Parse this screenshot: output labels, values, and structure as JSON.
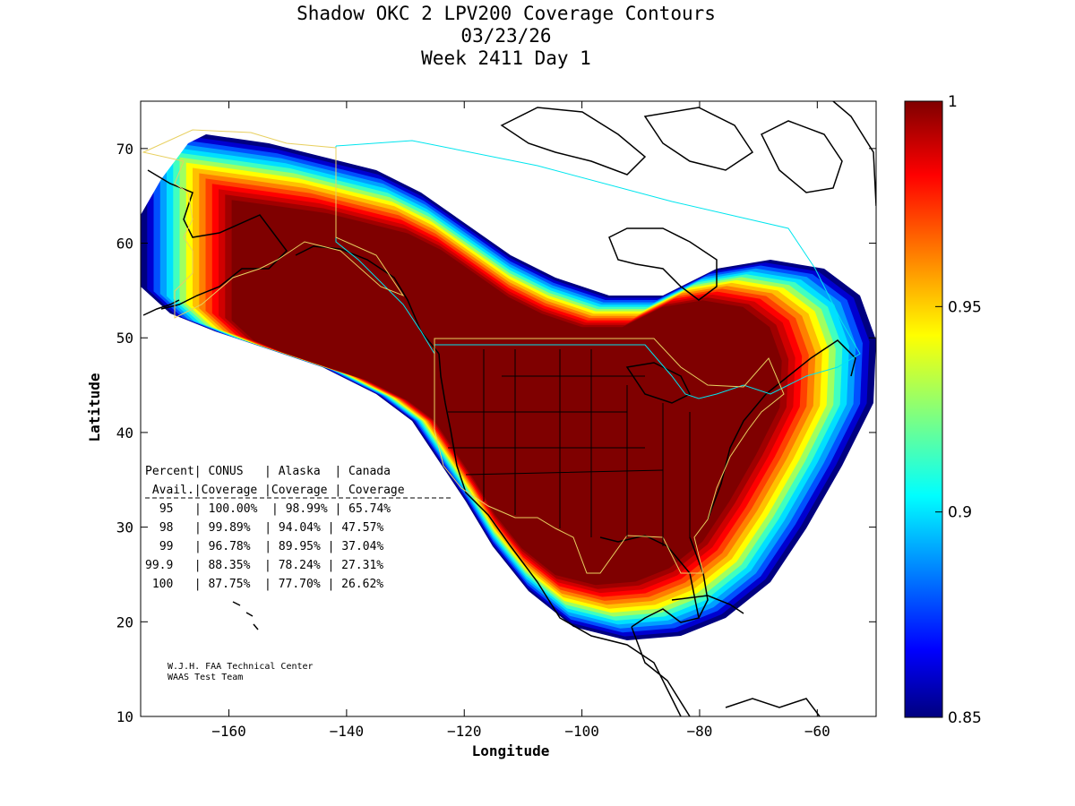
{
  "title": {
    "line1": "Shadow OKC 2 LPV200 Coverage Contours",
    "line2": "03/23/26",
    "line3": "Week 2411 Day 1"
  },
  "axes": {
    "xlabel": "Longitude",
    "ylabel": "Latitude",
    "xlim": [
      -175,
      -50
    ],
    "ylim": [
      10,
      75
    ],
    "xticks": [
      -160,
      -140,
      -120,
      -100,
      -80,
      -60
    ],
    "yticks": [
      10,
      20,
      30,
      40,
      50,
      60,
      70
    ]
  },
  "colorbar": {
    "min": 0.85,
    "max": 1,
    "ticks": [
      "1",
      "0.95",
      "0.9",
      "0.85"
    ],
    "tick_values": [
      1,
      0.95,
      0.9,
      0.85
    ]
  },
  "table": {
    "header1": "Percent| CONUS   | Alaska  | Canada",
    "header2": " Avail.|Coverage |Coverage | Coverage",
    "separator": "----------------------------------------",
    "rows": [
      " 95   | 100.00%  | 98.99% | 65.74%",
      " 98   | 99.89%  | 94.04% | 47.57%",
      " 99   | 96.78%  | 89.95% | 37.04%",
      "99.9   | 88.35%  | 78.24% | 27.31%",
      " 100   | 87.75%  | 77.70% | 26.62%"
    ]
  },
  "credit": {
    "line1": "W.J.H. FAA Technical Center",
    "line2": "WAAS Test Team"
  },
  "chart_data": {
    "type": "heatmap",
    "title": "Shadow OKC 2 LPV200 Coverage Contours",
    "xlabel": "Longitude",
    "ylabel": "Latitude",
    "xlim": [
      -175,
      -50
    ],
    "ylim": [
      10,
      75
    ],
    "colorscale": "jet",
    "zlim": [
      0.85,
      1
    ],
    "coverage_table": {
      "columns": [
        "Percent Avail.",
        "CONUS Coverage",
        "Alaska Coverage",
        "Canada Coverage"
      ],
      "rows": [
        [
          "95",
          "100.00%",
          "98.99%",
          "65.74%"
        ],
        [
          "98",
          "99.89%",
          "94.04%",
          "47.57%"
        ],
        [
          "99",
          "96.78%",
          "89.95%",
          "37.04%"
        ],
        [
          "99.9",
          "88.35%",
          "78.24%",
          "27.31%"
        ],
        [
          "100",
          "87.75%",
          "77.70%",
          "26.62%"
        ]
      ]
    }
  }
}
